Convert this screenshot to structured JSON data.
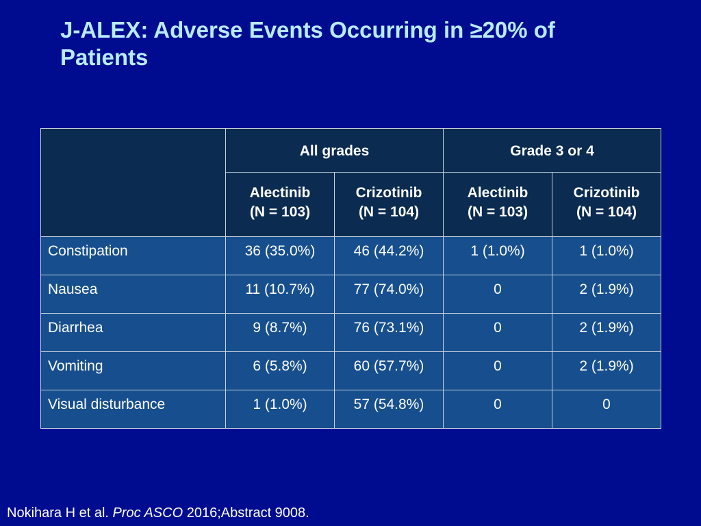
{
  "slide": {
    "title": "J-ALEX: Adverse Events Occurring in ≥20% of\nPatients"
  },
  "table": {
    "groups": [
      {
        "label": "All grades"
      },
      {
        "label": "Grade 3 or 4"
      }
    ],
    "columns": [
      {
        "drug": "Alectinib",
        "n": "(N = 103)"
      },
      {
        "drug": "Crizotinib",
        "n": "(N = 104)"
      },
      {
        "drug": "Alectinib",
        "n": "(N = 103)"
      },
      {
        "drug": "Crizotinib",
        "n": "(N = 104)"
      }
    ],
    "rows": [
      {
        "event": "Constipation",
        "values": [
          "36 (35.0%)",
          "46 (44.2%)",
          "1 (1.0%)",
          "1 (1.0%)"
        ]
      },
      {
        "event": "Nausea",
        "values": [
          "11 (10.7%)",
          "77 (74.0%)",
          "0",
          "2 (1.9%)"
        ]
      },
      {
        "event": "Diarrhea",
        "values": [
          "9 (8.7%)",
          "76 (73.1%)",
          "0",
          "2 (1.9%)"
        ]
      },
      {
        "event": "Vomiting",
        "values": [
          "6 (5.8%)",
          "60 (57.7%)",
          "0",
          "2 (1.9%)"
        ]
      },
      {
        "event": "Visual disturbance",
        "values": [
          "1 (1.0%)",
          "57 (54.8%)",
          "0",
          "0"
        ]
      }
    ]
  },
  "citation": {
    "authors": "Nokihara H et al.",
    "journal": "Proc ASCO",
    "reference": "2016;Abstract 9008."
  },
  "colors": {
    "background": "#000c8f",
    "title": "#b7ecff",
    "header_cell": "#0b2b50",
    "body_cell": "#174f8e",
    "text": "#ffffff"
  }
}
